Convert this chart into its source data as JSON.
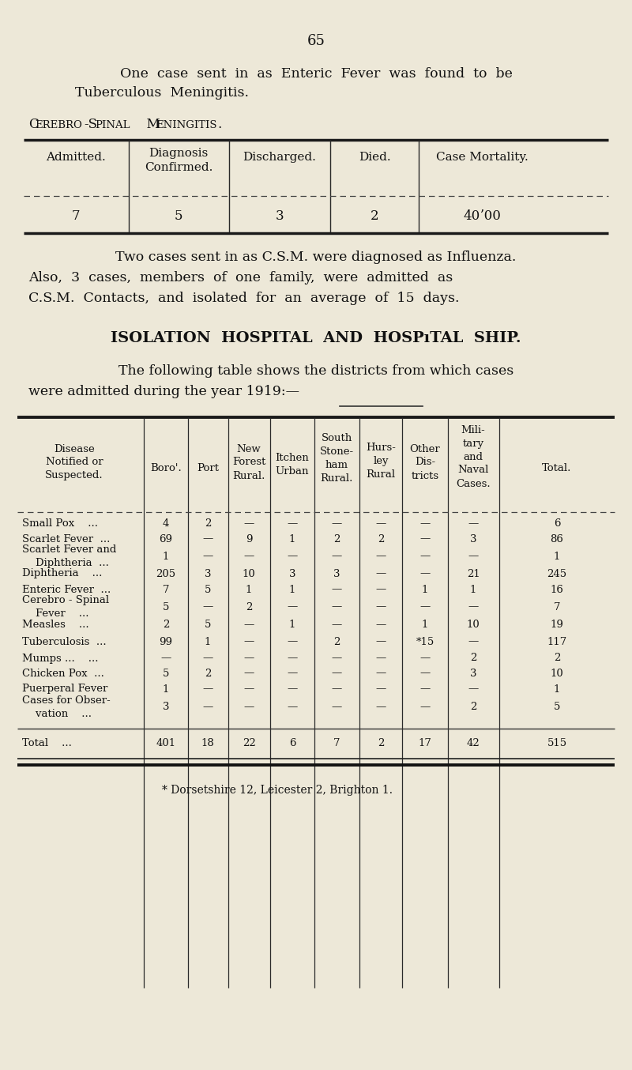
{
  "bg_color": "#ede8d8",
  "page_number": "65",
  "csm_table": {
    "headers": [
      "Admitted.",
      "Diagnosis\nConfirmed.",
      "Discharged.",
      "Died.",
      "Case Mortality."
    ],
    "values": [
      "7",
      "5",
      "3",
      "2",
      "40ʼ00"
    ]
  },
  "main_table": {
    "rows": [
      {
        "disease": "Small Pox    ...",
        "boro": "4",
        "port": "2",
        "nf": "—",
        "iu": "—",
        "ssh": "—",
        "hr": "—",
        "od": "—",
        "mn": "—",
        "total": "6"
      },
      {
        "disease": "Scarlet Fever  ...",
        "boro": "69",
        "port": "—",
        "nf": "9",
        "nf_dot": true,
        "iu": "1",
        "ssh": "2",
        "hr": "2",
        "od": "—",
        "mn": "3",
        "total": "86"
      },
      {
        "disease": "Scarlet Fever and\n    Diphtheria  ...",
        "boro": "1",
        "port": "—",
        "nf": "—",
        "iu": "—",
        "ssh": "—",
        "hr": "—",
        "od": "—",
        "mn": "—",
        "total": "1"
      },
      {
        "disease": "Diphtheria    ...",
        "boro": "205",
        "port": "3",
        "nf": "10",
        "iu": "3",
        "ssh": "3",
        "hr": "—",
        "od": "—",
        "mn": "21",
        "total": "245"
      },
      {
        "disease": "Enteric Fever  ...",
        "boro": "7",
        "port": "5",
        "nf": "1",
        "iu": "1",
        "ssh": "—",
        "hr": "—",
        "od": "1",
        "mn": "1",
        "total": "16"
      },
      {
        "disease": "Cerebro - Spinal\n    Fever    ...",
        "boro": "5",
        "port": "—",
        "nf": "2",
        "iu": "—",
        "ssh": "—",
        "hr": "—",
        "od": "—",
        "mn": "—",
        "total": "7"
      },
      {
        "disease": "Measles    ...",
        "boro": "2",
        "port": "5",
        "nf": "—",
        "iu": "1",
        "ssh": "—",
        "hr": "—",
        "od": "1",
        "mn": "10",
        "total": "19"
      },
      {
        "disease": "Tuberculosis  ...",
        "boro": "99",
        "port": "1",
        "nf": "—",
        "iu": "—",
        "ssh": "2",
        "hr": "—",
        "od": "*15",
        "mn": "—",
        "total": "117"
      },
      {
        "disease": "Mumps ...    ...",
        "boro": "—",
        "port": "—",
        "nf": "—",
        "iu": "—",
        "ssh": "—",
        "hr": "—",
        "od": "—",
        "mn": "2",
        "total": "2"
      },
      {
        "disease": "Chicken Pox  ...",
        "boro": "5",
        "port": "2",
        "nf": "—",
        "iu": "—",
        "ssh": "—",
        "hr": "—",
        "od": "—",
        "mn": "3",
        "total": "10"
      },
      {
        "disease": "Puerperal Fever",
        "boro": "1",
        "port": "—",
        "nf": "—",
        "iu": "—",
        "ssh": "—",
        "hr": "—",
        "od": "—",
        "mn": "—",
        "total": "1"
      },
      {
        "disease": "Cases for Obser-\n    vation    ...",
        "boro": "3",
        "port": "—",
        "nf": "—",
        "iu": "—",
        "ssh": "—",
        "hr": "—",
        "od": "—",
        "mn": "2",
        "total": "5"
      }
    ],
    "total_row": {
      "disease": "Total    ...",
      "boro": "401",
      "port": "18",
      "nf": "22",
      "iu": "6",
      "ssh": "7",
      "hr": "2",
      "od": "17",
      "mn": "42",
      "total": "515"
    }
  },
  "footnote": "* Dorsetshire 12, Leicester 2, Brighton 1."
}
